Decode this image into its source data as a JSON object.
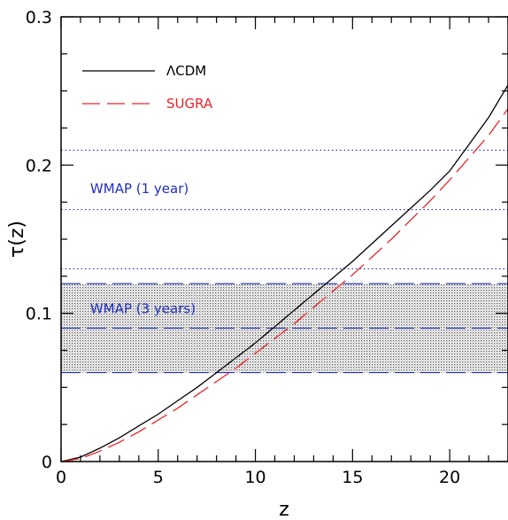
{
  "chart_data": {
    "type": "line",
    "xlabel": "z",
    "ylabel": "τ(z)",
    "xlim": [
      0,
      23
    ],
    "ylim": [
      0,
      0.3
    ],
    "x_ticks": [
      0,
      5,
      10,
      15,
      20
    ],
    "y_ticks": [
      0,
      0.1,
      0.2,
      0.3
    ],
    "x_tick_labels": [
      "0",
      "5",
      "10",
      "15",
      "20"
    ],
    "y_tick_labels": [
      "0",
      "0.1",
      "0.2",
      "0.3"
    ],
    "grid": false,
    "legend_position": "top-left",
    "series": [
      {
        "name": "ΛCDM",
        "color": "#000000",
        "style": "solid",
        "x": [
          0,
          1,
          2,
          3,
          4,
          5,
          6,
          7,
          8,
          9,
          10,
          11,
          12,
          13,
          14,
          15,
          16,
          17,
          18,
          19,
          20,
          21,
          22,
          23
        ],
        "y": [
          0,
          0.003,
          0.009,
          0.016,
          0.024,
          0.032,
          0.041,
          0.05,
          0.06,
          0.07,
          0.08,
          0.091,
          0.102,
          0.113,
          0.124,
          0.135,
          0.147,
          0.159,
          0.171,
          0.183,
          0.196,
          0.214,
          0.232,
          0.254
        ]
      },
      {
        "name": "SUGRA",
        "color": "#e8262a",
        "style": "dashed",
        "x": [
          0,
          1,
          2,
          3,
          4,
          5,
          6,
          7,
          8,
          9,
          10,
          11,
          12,
          13,
          14,
          15,
          16,
          17,
          18,
          19,
          20,
          21,
          22,
          23
        ],
        "y": [
          0,
          0.002,
          0.007,
          0.013,
          0.02,
          0.028,
          0.036,
          0.045,
          0.054,
          0.063,
          0.073,
          0.083,
          0.093,
          0.104,
          0.115,
          0.126,
          0.138,
          0.15,
          0.163,
          0.176,
          0.19,
          0.205,
          0.22,
          0.238
        ]
      }
    ],
    "reference_lines": [
      {
        "y": 0.21,
        "style": "dotted",
        "color": "#1f2fbf"
      },
      {
        "y": 0.17,
        "style": "dotted",
        "color": "#1f2fbf"
      },
      {
        "y": 0.13,
        "style": "dotted",
        "color": "#1f2fbf"
      },
      {
        "y": 0.12,
        "style": "dashed",
        "color": "#1f2fbf"
      },
      {
        "y": 0.09,
        "style": "dashed",
        "color": "#1f2fbf"
      },
      {
        "y": 0.06,
        "style": "dashed",
        "color": "#1f2fbf"
      }
    ],
    "shaded_band": {
      "y0": 0.06,
      "y1": 0.12,
      "color": "#555555"
    },
    "annotations": [
      {
        "text": "WMAP  (1 year)",
        "x": 1.5,
        "y": 0.181,
        "color": "#1f2fbf"
      },
      {
        "text": "WMAP  (3 years)",
        "x": 1.5,
        "y": 0.1,
        "color": "#1f2fbf"
      }
    ]
  }
}
